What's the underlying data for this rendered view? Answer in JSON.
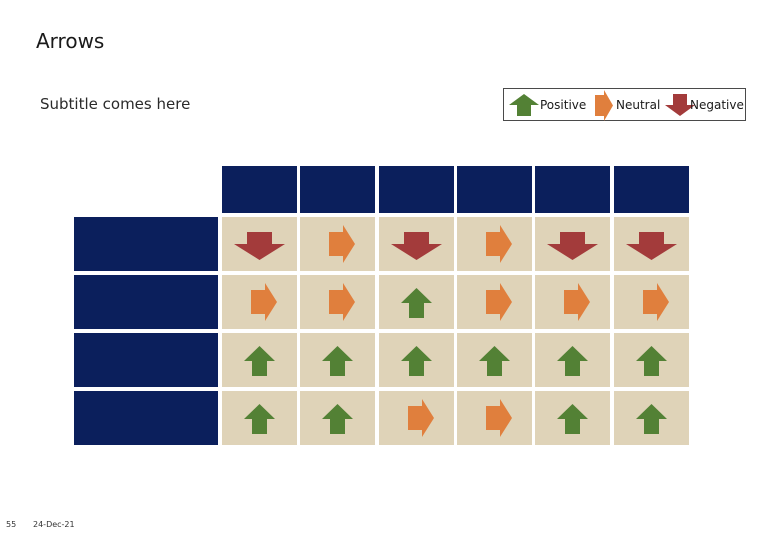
{
  "page": {
    "title": "Arrows",
    "subtitle": "Subtitle comes here"
  },
  "legend": [
    {
      "label": "Positive",
      "kind": "up",
      "color": "#538135"
    },
    {
      "label": "Neutral",
      "kind": "right",
      "color": "#e07f3d"
    },
    {
      "label": "Negative",
      "kind": "down",
      "color": "#a33b3b"
    }
  ],
  "colors": {
    "header": "#0b1f5c",
    "cell": "#dfd3b8",
    "positive": "#538135",
    "neutral": "#e07f3d",
    "negative": "#a33b3b"
  },
  "grid": {
    "columns": [
      "",
      "",
      "",
      "",
      "",
      ""
    ],
    "rows": [
      {
        "label": "",
        "values": [
          "down",
          "right",
          "down",
          "right",
          "down",
          "down"
        ]
      },
      {
        "label": "",
        "values": [
          "right",
          "right",
          "up",
          "right",
          "right",
          "right"
        ]
      },
      {
        "label": "",
        "values": [
          "up",
          "up",
          "up",
          "up",
          "up",
          "up"
        ]
      },
      {
        "label": "",
        "values": [
          "up",
          "up",
          "right",
          "right",
          "up",
          "up"
        ]
      }
    ]
  },
  "footer": {
    "page_number": "55",
    "date": "24-Dec-21"
  }
}
